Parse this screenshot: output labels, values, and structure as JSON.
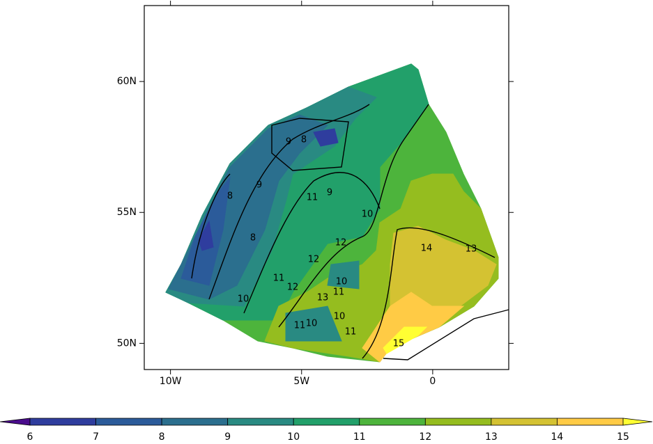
{
  "chart_data": {
    "type": "contour",
    "xlim": [
      -11,
      2.9
    ],
    "ylim": [
      49,
      62.9
    ],
    "xticks": [
      {
        "value": -10,
        "label": "10W"
      },
      {
        "value": -5,
        "label": "5W"
      },
      0
    ],
    "yticks": [
      {
        "value": 50,
        "label": "50N"
      },
      {
        "value": 55,
        "label": "55N"
      },
      {
        "value": 60,
        "label": "60N"
      }
    ],
    "colorbar": {
      "levels": [
        6,
        7,
        8,
        9,
        10,
        11,
        12,
        13,
        14,
        15
      ],
      "colors": [
        "#4a0c8c",
        "#2f3d9e",
        "#2b5b9a",
        "#2b6f8e",
        "#298a82",
        "#22a06a",
        "#4db43c",
        "#95bd1f",
        "#d4c232",
        "#ffcb45",
        "#ffff33"
      ],
      "extend": "both"
    },
    "contour_labels": [
      9,
      8,
      8,
      8,
      9,
      9,
      11,
      10,
      10,
      12,
      12,
      12,
      10,
      11,
      13,
      10,
      11,
      10,
      11,
      15,
      14,
      13,
      11
    ]
  }
}
